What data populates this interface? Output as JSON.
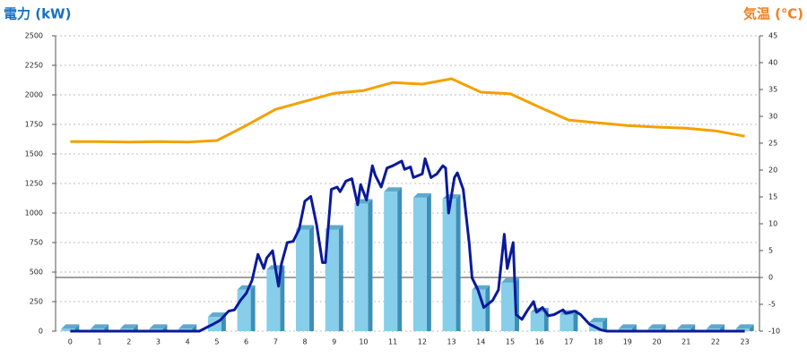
{
  "chart_data": {
    "type": "bar",
    "ylabel": "電力 (kW)",
    "y2label": "気温 (℃)",
    "categories": [
      "0",
      "1",
      "2",
      "3",
      "4",
      "5",
      "6",
      "7",
      "8",
      "9",
      "10",
      "11",
      "12",
      "13",
      "14",
      "15",
      "16",
      "17",
      "18",
      "19",
      "20",
      "21",
      "22",
      "23"
    ],
    "ylim": [
      0,
      2500
    ],
    "yticks": [
      0,
      250,
      500,
      750,
      1000,
      1250,
      1500,
      1750,
      2000,
      2250,
      2500
    ],
    "y2lim": [
      -10,
      45
    ],
    "y2ticks": [
      -10,
      -5,
      0,
      5,
      10,
      15,
      20,
      25,
      30,
      35,
      40,
      45
    ],
    "grid": true,
    "series": [
      {
        "type": "bar",
        "color": "#87ceeb",
        "values": [
          20,
          20,
          20,
          20,
          20,
          120,
          350,
          520,
          860,
          860,
          1080,
          1180,
          1130,
          1120,
          350,
          410,
          160,
          140,
          75,
          20,
          20,
          20,
          20,
          20
        ]
      },
      {
        "type": "line",
        "color": "#0a1a9a",
        "x": [
          0,
          4.4,
          4.8,
          5.1,
          5.4,
          5.6,
          5.8,
          6.0,
          6.2,
          6.4,
          6.6,
          6.7,
          6.9,
          7.1,
          7.2,
          7.4,
          7.6,
          7.8,
          8.0,
          8.2,
          8.4,
          8.6,
          8.7,
          8.9,
          9.1,
          9.2,
          9.4,
          9.6,
          9.8,
          9.9,
          10.1,
          10.3,
          10.4,
          10.6,
          10.8,
          11.0,
          11.3,
          11.4,
          11.6,
          11.7,
          12.0,
          12.1,
          12.3,
          12.5,
          12.7,
          12.8,
          12.9,
          13.1,
          13.2,
          13.4,
          13.6,
          13.7,
          13.9,
          14.1,
          14.4,
          14.6,
          14.8,
          14.9,
          15.1,
          15.2,
          15.4,
          15.6,
          15.8,
          15.9,
          16.1,
          16.3,
          16.5,
          16.8,
          16.9,
          17.2,
          17.4,
          17.7,
          18.1,
          18.3,
          23
        ],
        "values": [
          0,
          0,
          50,
          90,
          170,
          180,
          260,
          320,
          430,
          650,
          530,
          620,
          680,
          380,
          570,
          750,
          760,
          860,
          1100,
          1140,
          900,
          580,
          580,
          1200,
          1220,
          1180,
          1270,
          1290,
          1070,
          1240,
          1110,
          1400,
          1320,
          1220,
          1380,
          1400,
          1440,
          1370,
          1390,
          1300,
          1330,
          1460,
          1300,
          1330,
          1400,
          1380,
          1000,
          1300,
          1340,
          1200,
          750,
          450,
          350,
          200,
          260,
          350,
          820,
          530,
          750,
          140,
          100,
          180,
          250,
          160,
          200,
          130,
          140,
          180,
          150,
          170,
          140,
          60,
          10,
          0,
          0
        ]
      },
      {
        "type": "line",
        "axis": "y2",
        "color": "#f5a000",
        "values": [
          25.3,
          25.3,
          25.2,
          25.3,
          25.2,
          25.5,
          28.3,
          31.3,
          32.8,
          34.3,
          34.8,
          36.3,
          36.0,
          37.0,
          34.5,
          34.2,
          31.7,
          29.3,
          28.8,
          28.3,
          28.0,
          27.8,
          27.3,
          26.3
        ]
      }
    ]
  }
}
